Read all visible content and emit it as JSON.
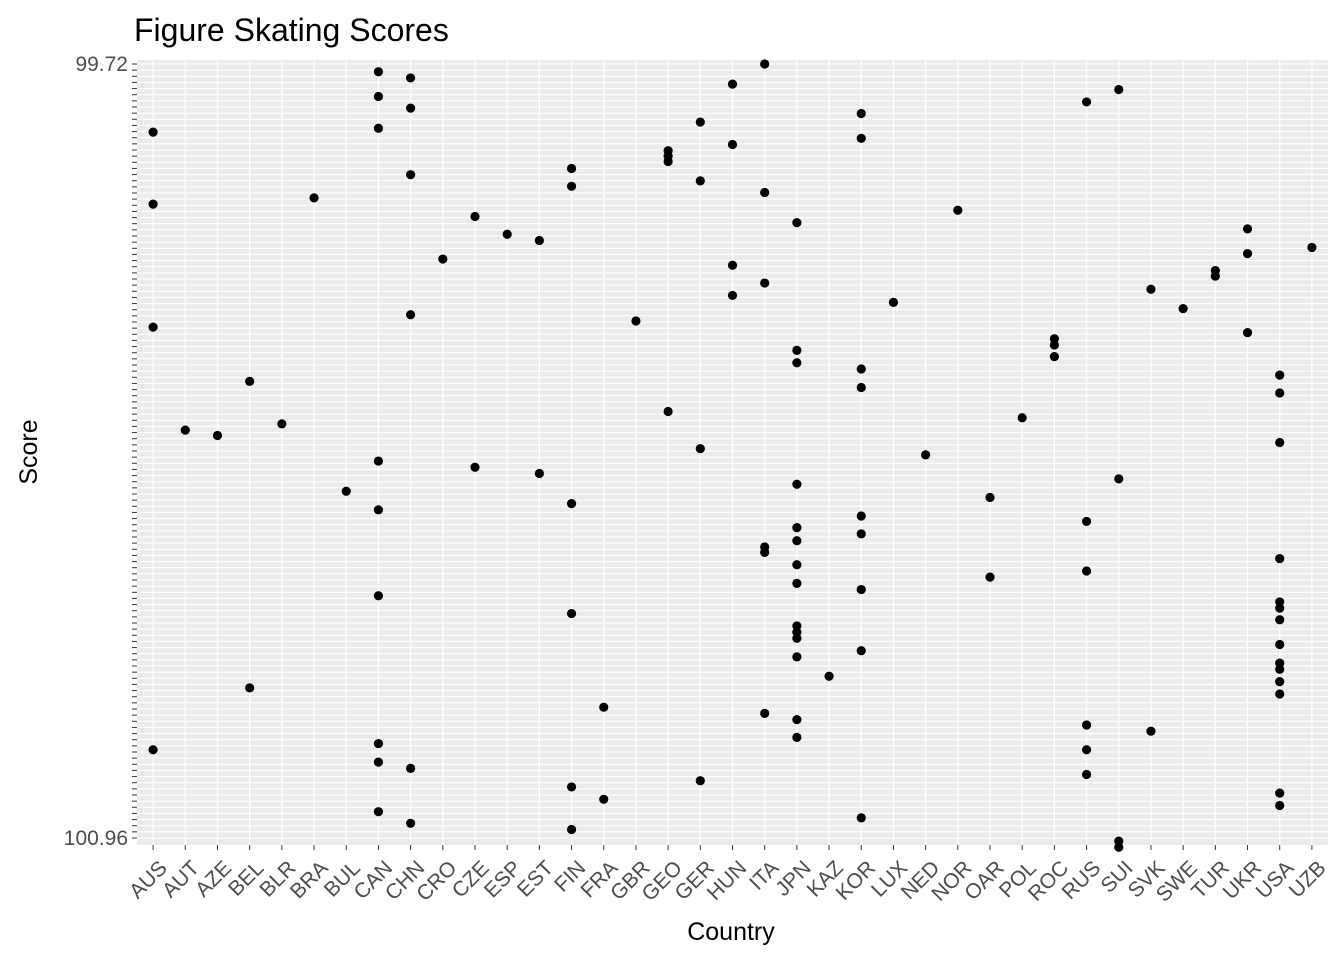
{
  "chart_data": {
    "type": "scatter",
    "title": "Figure Skating Scores",
    "xlabel": "Country",
    "ylabel": "Score",
    "grid": true,
    "legend": "none",
    "categories": [
      "AUS",
      "AUT",
      "AZE",
      "BEL",
      "BLR",
      "BRA",
      "BUL",
      "CAN",
      "CHN",
      "CRO",
      "CZE",
      "ESP",
      "EST",
      "FIN",
      "FRA",
      "GBR",
      "GEO",
      "GER",
      "HUN",
      "ITA",
      "JPN",
      "KAZ",
      "KOR",
      "LUX",
      "NED",
      "NOR",
      "OAR",
      "POL",
      "ROC",
      "RUS",
      "SUI",
      "SVK",
      "SWE",
      "TUR",
      "UKR",
      "USA",
      "UZB"
    ],
    "y_axis_note": "discrete axis; tick labels overprinted and illegible except the extremes",
    "y_tick_labels_legible": [
      "99.72",
      "100.96"
    ],
    "points": [
      {
        "country": "CAN",
        "level": 0.99
      },
      {
        "country": "CHN",
        "level": 0.982
      },
      {
        "country": "HUN",
        "level": 0.974
      },
      {
        "country": "ITA",
        "level": 1.0
      },
      {
        "country": "SUI",
        "level": 0.967
      },
      {
        "country": "CAN",
        "level": 0.958
      },
      {
        "country": "RUS",
        "level": 0.951
      },
      {
        "country": "CHN",
        "level": 0.943
      },
      {
        "country": "KOR",
        "level": 0.936
      },
      {
        "country": "GER",
        "level": 0.925
      },
      {
        "country": "CAN",
        "level": 0.917
      },
      {
        "country": "AUS",
        "level": 0.912
      },
      {
        "country": "KOR",
        "level": 0.904
      },
      {
        "country": "HUN",
        "level": 0.896
      },
      {
        "country": "GEO",
        "level": 0.888
      },
      {
        "country": "GEO",
        "level": 0.881
      },
      {
        "country": "GEO",
        "level": 0.874
      },
      {
        "country": "FIN",
        "level": 0.865
      },
      {
        "country": "CHN",
        "level": 0.857
      },
      {
        "country": "GER",
        "level": 0.849
      },
      {
        "country": "FIN",
        "level": 0.842
      },
      {
        "country": "ITA",
        "level": 0.834
      },
      {
        "country": "BRA",
        "level": 0.827
      },
      {
        "country": "AUS",
        "level": 0.819
      },
      {
        "country": "NOR",
        "level": 0.811
      },
      {
        "country": "CZE",
        "level": 0.803
      },
      {
        "country": "JPN",
        "level": 0.795
      },
      {
        "country": "UKR",
        "level": 0.787
      },
      {
        "country": "ESP",
        "level": 0.78
      },
      {
        "country": "EST",
        "level": 0.772
      },
      {
        "country": "UZB",
        "level": 0.763
      },
      {
        "country": "UKR",
        "level": 0.755
      },
      {
        "country": "CRO",
        "level": 0.748
      },
      {
        "country": "HUN",
        "level": 0.74
      },
      {
        "country": "TUR",
        "level": 0.733
      },
      {
        "country": "TUR",
        "level": 0.726
      },
      {
        "country": "ITA",
        "level": 0.717
      },
      {
        "country": "SVK",
        "level": 0.709
      },
      {
        "country": "HUN",
        "level": 0.701
      },
      {
        "country": "LUX",
        "level": 0.692
      },
      {
        "country": "SWE",
        "level": 0.684
      },
      {
        "country": "CHN",
        "level": 0.676
      },
      {
        "country": "GBR",
        "level": 0.668
      },
      {
        "country": "AUS",
        "level": 0.66
      },
      {
        "country": "UKR",
        "level": 0.653
      },
      {
        "country": "ROC",
        "level": 0.645
      },
      {
        "country": "ROC",
        "level": 0.637
      },
      {
        "country": "JPN",
        "level": 0.63
      },
      {
        "country": "ROC",
        "level": 0.622
      },
      {
        "country": "JPN",
        "level": 0.614
      },
      {
        "country": "KOR",
        "level": 0.606
      },
      {
        "country": "USA",
        "level": 0.598
      },
      {
        "country": "BEL",
        "level": 0.59
      },
      {
        "country": "KOR",
        "level": 0.582
      },
      {
        "country": "USA",
        "level": 0.575
      },
      {
        "country": "GEO",
        "level": 0.551
      },
      {
        "country": "POL",
        "level": 0.543
      },
      {
        "country": "BLR",
        "level": 0.535
      },
      {
        "country": "AUT",
        "level": 0.527
      },
      {
        "country": "AZE",
        "level": 0.52
      },
      {
        "country": "USA",
        "level": 0.511
      },
      {
        "country": "GER",
        "level": 0.503
      },
      {
        "country": "NED",
        "level": 0.495
      },
      {
        "country": "CAN",
        "level": 0.487
      },
      {
        "country": "CZE",
        "level": 0.479
      },
      {
        "country": "EST",
        "level": 0.471
      },
      {
        "country": "SUI",
        "level": 0.464
      },
      {
        "country": "JPN",
        "level": 0.457
      },
      {
        "country": "BUL",
        "level": 0.448
      },
      {
        "country": "OAR",
        "level": 0.44
      },
      {
        "country": "FIN",
        "level": 0.432
      },
      {
        "country": "CAN",
        "level": 0.424
      },
      {
        "country": "KOR",
        "level": 0.416
      },
      {
        "country": "RUS",
        "level": 0.409
      },
      {
        "country": "JPN",
        "level": 0.401
      },
      {
        "country": "KOR",
        "level": 0.393
      },
      {
        "country": "JPN",
        "level": 0.384
      },
      {
        "country": "ITA",
        "level": 0.376
      },
      {
        "country": "ITA",
        "level": 0.369
      },
      {
        "country": "USA",
        "level": 0.361
      },
      {
        "country": "JPN",
        "level": 0.353
      },
      {
        "country": "RUS",
        "level": 0.345
      },
      {
        "country": "OAR",
        "level": 0.337
      },
      {
        "country": "JPN",
        "level": 0.329
      },
      {
        "country": "KOR",
        "level": 0.321
      },
      {
        "country": "CAN",
        "level": 0.313
      },
      {
        "country": "USA",
        "level": 0.305
      },
      {
        "country": "USA",
        "level": 0.297
      },
      {
        "country": "FIN",
        "level": 0.29
      },
      {
        "country": "USA",
        "level": 0.282
      },
      {
        "country": "JPN",
        "level": 0.274
      },
      {
        "country": "JPN",
        "level": 0.266
      },
      {
        "country": "JPN",
        "level": 0.258
      },
      {
        "country": "USA",
        "level": 0.25
      },
      {
        "country": "KOR",
        "level": 0.242
      },
      {
        "country": "JPN",
        "level": 0.234
      },
      {
        "country": "USA",
        "level": 0.226
      },
      {
        "country": "USA",
        "level": 0.218
      },
      {
        "country": "KAZ",
        "level": 0.209
      },
      {
        "country": "USA",
        "level": 0.202
      },
      {
        "country": "BEL",
        "level": 0.194
      },
      {
        "country": "USA",
        "level": 0.186
      },
      {
        "country": "FRA",
        "level": 0.169
      },
      {
        "country": "ITA",
        "level": 0.161
      },
      {
        "country": "JPN",
        "level": 0.153
      },
      {
        "country": "RUS",
        "level": 0.146
      },
      {
        "country": "SVK",
        "level": 0.138
      },
      {
        "country": "JPN",
        "level": 0.13
      },
      {
        "country": "CAN",
        "level": 0.122
      },
      {
        "country": "AUS",
        "level": 0.114
      },
      {
        "country": "RUS",
        "level": 0.114
      },
      {
        "country": "CAN",
        "level": 0.098
      },
      {
        "country": "CHN",
        "level": 0.09
      },
      {
        "country": "RUS",
        "level": 0.082
      },
      {
        "country": "GER",
        "level": 0.074
      },
      {
        "country": "FIN",
        "level": 0.066
      },
      {
        "country": "USA",
        "level": 0.058
      },
      {
        "country": "FRA",
        "level": 0.05
      },
      {
        "country": "USA",
        "level": 0.042
      },
      {
        "country": "CAN",
        "level": 0.034
      },
      {
        "country": "KOR",
        "level": 0.026
      },
      {
        "country": "CHN",
        "level": 0.019
      },
      {
        "country": "FIN",
        "level": 0.011
      },
      {
        "country": "SUI",
        "level": -0.004
      },
      {
        "country": "SUI",
        "level": -0.012
      }
    ]
  }
}
